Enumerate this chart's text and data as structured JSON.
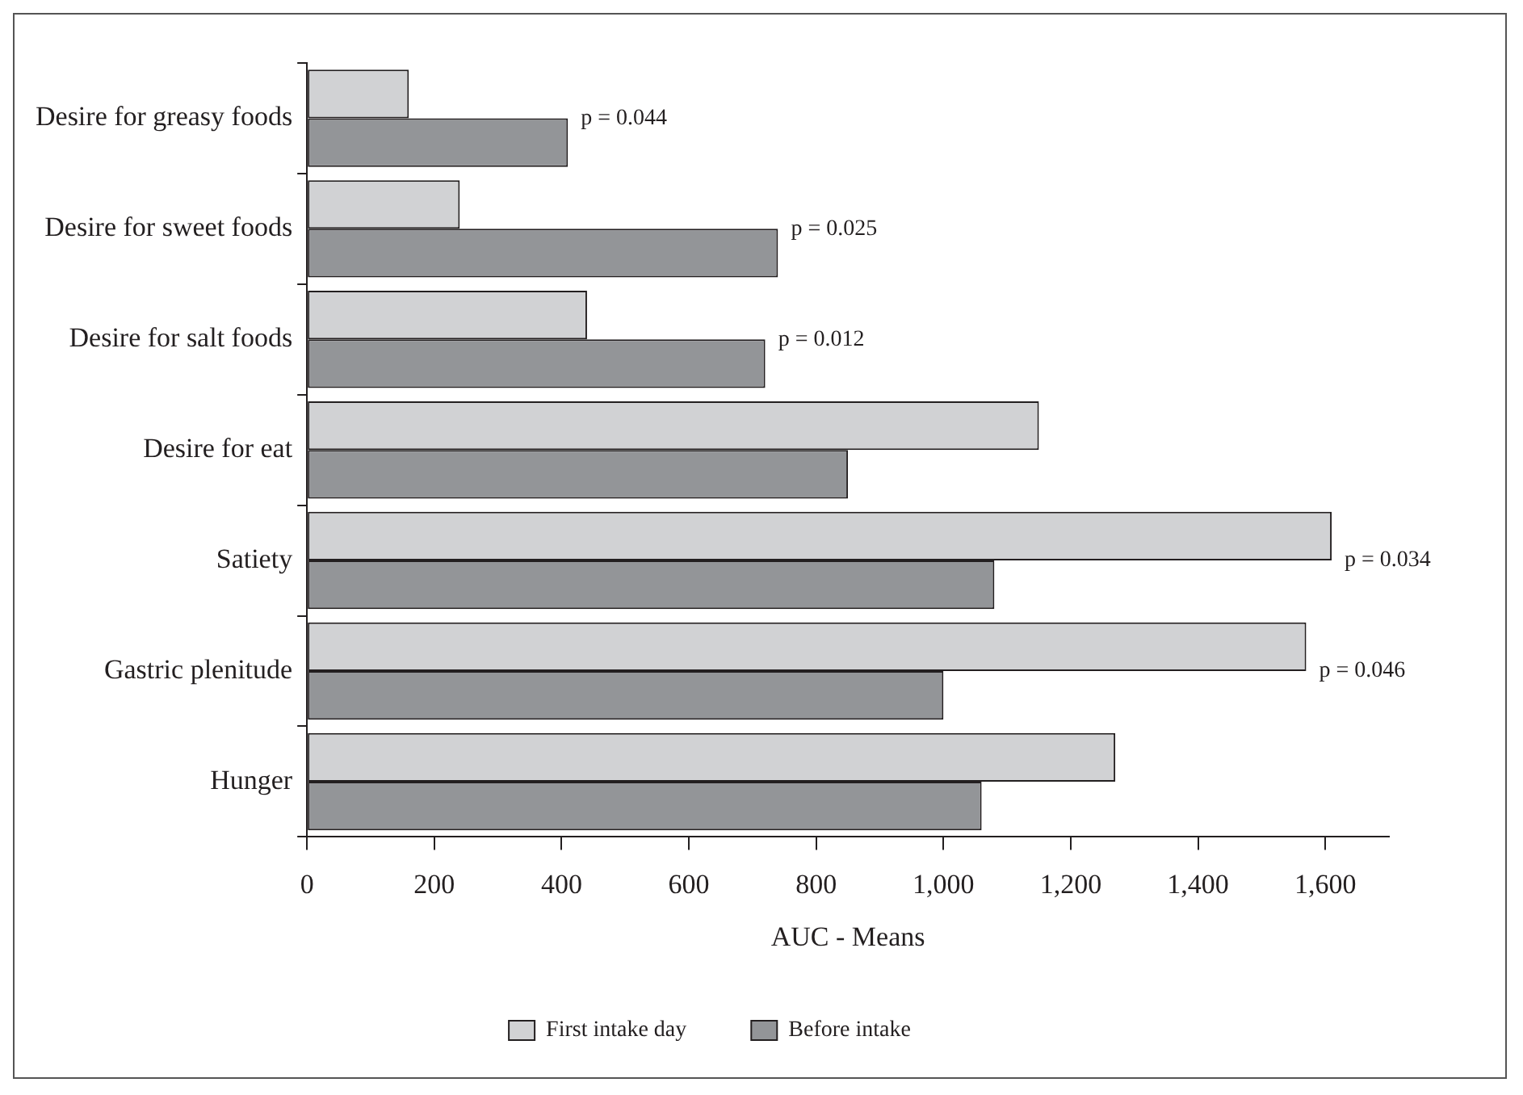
{
  "chart_data": {
    "type": "bar",
    "orientation": "horizontal",
    "xlabel": "AUC - Means",
    "categories": [
      "Desire for greasy foods",
      "Desire for sweet foods",
      "Desire for salt foods",
      "Desire for eat",
      "Satiety",
      "Gastric plenitude",
      "Hunger"
    ],
    "series": [
      {
        "name": "First intake day",
        "color": "#d1d2d4",
        "values": [
          160,
          240,
          440,
          1150,
          1610,
          1570,
          1270
        ]
      },
      {
        "name": "Before intake",
        "color": "#939598",
        "values": [
          410,
          740,
          720,
          850,
          1080,
          1000,
          1060
        ]
      }
    ],
    "xlim": [
      0,
      1700
    ],
    "xticks": [
      0,
      {
        "value": 200,
        "label": "200"
      },
      {
        "value": 400,
        "label": "400"
      },
      {
        "value": 600,
        "label": "600"
      },
      {
        "value": 800,
        "label": "800"
      },
      {
        "value": 1000,
        "label": "1,000"
      },
      {
        "value": 1200,
        "label": "1,200"
      },
      {
        "value": 1400,
        "label": "1,400"
      },
      {
        "value": 1600,
        "label": "1,600"
      }
    ],
    "grid": false,
    "legend": "bottom",
    "annotations": [
      {
        "text": "p = 0.044",
        "x": 410,
        "y": "Desire for greasy foods"
      },
      {
        "text": "p = 0.025",
        "x": 740,
        "y": "Desire for sweet foods"
      },
      {
        "text": "p = 0.012",
        "x": 720,
        "y": "Desire for salt foods"
      },
      {
        "text": "p = 0.034",
        "x": 1610,
        "y": "Satiety"
      },
      {
        "text": "p = 0.046",
        "x": 1570,
        "y": "Gastric plenitude"
      }
    ]
  }
}
